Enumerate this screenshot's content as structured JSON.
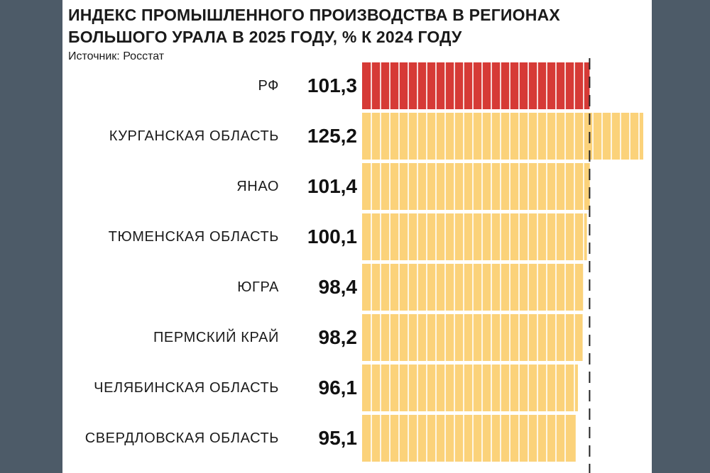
{
  "chart_data": {
    "type": "bar",
    "orientation": "horizontal",
    "title": "ИНДЕКС ПРОМЫШЛЕННОГО ПРОИЗВОДСТВА В РЕГИОНАХ БОЛЬШОГО УРАЛА В 2025 ГОДУ, % К 2024 ГОДУ",
    "title_lines": [
      "ИНДЕКС ПРОМЫШЛЕННОГО ПРОИЗВОДСТВА В РЕГИОНАХ",
      "БОЛЬШОГО УРАЛА В 2025 ГОДУ, % К 2024 ГОДУ"
    ],
    "source": "Источник: Росстат",
    "categories": [
      "РФ",
      "КУРГАНСКАЯ ОБЛАСТЬ",
      "ЯНАО",
      "ТЮМЕНСКАЯ ОБЛАСТЬ",
      "ЮГРА",
      "ПЕРМСКИЙ КРАЙ",
      "ЧЕЛЯБИНСКАЯ ОБЛАСТЬ",
      "СВЕРДЛОВСКАЯ ОБЛАСТЬ"
    ],
    "values": [
      101.3,
      125.2,
      101.4,
      100.1,
      98.4,
      98.2,
      96.1,
      95.1
    ],
    "value_labels": [
      "101,3",
      "125,2",
      "101,4",
      "100,1",
      "98,4",
      "98,2",
      "96,1",
      "95,1"
    ],
    "highlight_index": 0,
    "reference_line": 101.3,
    "xlim": [
      0,
      125.2
    ],
    "colors": {
      "highlight": "#d63a36",
      "bar": "#fbd27a",
      "segment_line": "#ffffff",
      "reference": "#222222"
    }
  }
}
